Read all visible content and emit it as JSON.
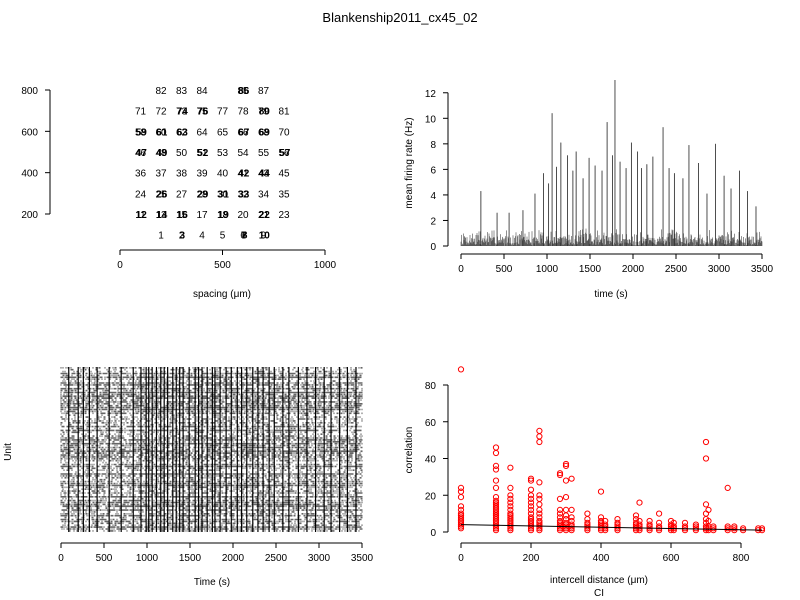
{
  "figure": {
    "title": "Blankenship2011_cx45_02"
  },
  "chart_data": [
    {
      "id": "layout",
      "type": "scatter",
      "subtype": "text-labels",
      "title": "",
      "xlabel": "spacing (μm)",
      "ylabel": "",
      "xlim": [
        0,
        1000
      ],
      "ylim": [
        100,
        850
      ],
      "xticks": [
        "0",
        "500",
        "1000"
      ],
      "yticks": [
        "200",
        "400",
        "600",
        "800"
      ],
      "xtick_values": [
        0,
        500,
        1000
      ],
      "ytick_values": [
        200,
        400,
        600,
        800
      ],
      "points": [
        {
          "label": "1",
          "x": 200,
          "y": 100
        },
        {
          "label": "2",
          "x": 300,
          "y": 100
        },
        {
          "label": "3",
          "x": 300,
          "y": 100
        },
        {
          "label": "4",
          "x": 400,
          "y": 100
        },
        {
          "label": "5",
          "x": 500,
          "y": 100
        },
        {
          "label": "6",
          "x": 600,
          "y": 100
        },
        {
          "label": "7",
          "x": 600,
          "y": 100
        },
        {
          "label": "8",
          "x": 600,
          "y": 100
        },
        {
          "label": "9",
          "x": 700,
          "y": 100
        },
        {
          "label": "10",
          "x": 700,
          "y": 100
        },
        {
          "label": "11",
          "x": 100,
          "y": 200
        },
        {
          "label": "12",
          "x": 100,
          "y": 200
        },
        {
          "label": "13",
          "x": 200,
          "y": 200
        },
        {
          "label": "14",
          "x": 200,
          "y": 200
        },
        {
          "label": "15",
          "x": 300,
          "y": 200
        },
        {
          "label": "16",
          "x": 300,
          "y": 200
        },
        {
          "label": "17",
          "x": 400,
          "y": 200
        },
        {
          "label": "18",
          "x": 500,
          "y": 200
        },
        {
          "label": "19",
          "x": 500,
          "y": 200
        },
        {
          "label": "20",
          "x": 600,
          "y": 200
        },
        {
          "label": "21",
          "x": 700,
          "y": 200
        },
        {
          "label": "22",
          "x": 700,
          "y": 200
        },
        {
          "label": "23",
          "x": 800,
          "y": 200
        },
        {
          "label": "24",
          "x": 100,
          "y": 300
        },
        {
          "label": "25",
          "x": 200,
          "y": 300
        },
        {
          "label": "26",
          "x": 200,
          "y": 300
        },
        {
          "label": "27",
          "x": 300,
          "y": 300
        },
        {
          "label": "28",
          "x": 400,
          "y": 300
        },
        {
          "label": "29",
          "x": 400,
          "y": 300
        },
        {
          "label": "30",
          "x": 500,
          "y": 300
        },
        {
          "label": "31",
          "x": 500,
          "y": 300
        },
        {
          "label": "32",
          "x": 600,
          "y": 300
        },
        {
          "label": "33",
          "x": 600,
          "y": 300
        },
        {
          "label": "34",
          "x": 700,
          "y": 300
        },
        {
          "label": "35",
          "x": 800,
          "y": 300
        },
        {
          "label": "36",
          "x": 100,
          "y": 400
        },
        {
          "label": "37",
          "x": 200,
          "y": 400
        },
        {
          "label": "38",
          "x": 300,
          "y": 400
        },
        {
          "label": "39",
          "x": 400,
          "y": 400
        },
        {
          "label": "40",
          "x": 500,
          "y": 400
        },
        {
          "label": "41",
          "x": 600,
          "y": 400
        },
        {
          "label": "42",
          "x": 600,
          "y": 400
        },
        {
          "label": "43",
          "x": 700,
          "y": 400
        },
        {
          "label": "44",
          "x": 700,
          "y": 400
        },
        {
          "label": "45",
          "x": 800,
          "y": 400
        },
        {
          "label": "46",
          "x": 100,
          "y": 500
        },
        {
          "label": "47",
          "x": 100,
          "y": 500
        },
        {
          "label": "48",
          "x": 200,
          "y": 500
        },
        {
          "label": "49",
          "x": 200,
          "y": 500
        },
        {
          "label": "50",
          "x": 300,
          "y": 500
        },
        {
          "label": "51",
          "x": 400,
          "y": 500
        },
        {
          "label": "52",
          "x": 400,
          "y": 500
        },
        {
          "label": "53",
          "x": 500,
          "y": 500
        },
        {
          "label": "54",
          "x": 600,
          "y": 500
        },
        {
          "label": "55",
          "x": 700,
          "y": 500
        },
        {
          "label": "56",
          "x": 800,
          "y": 500
        },
        {
          "label": "57",
          "x": 800,
          "y": 500
        },
        {
          "label": "58",
          "x": 100,
          "y": 600
        },
        {
          "label": "59",
          "x": 100,
          "y": 600
        },
        {
          "label": "60",
          "x": 200,
          "y": 600
        },
        {
          "label": "61",
          "x": 200,
          "y": 600
        },
        {
          "label": "62",
          "x": 300,
          "y": 600
        },
        {
          "label": "63",
          "x": 300,
          "y": 600
        },
        {
          "label": "64",
          "x": 400,
          "y": 600
        },
        {
          "label": "65",
          "x": 500,
          "y": 600
        },
        {
          "label": "66",
          "x": 600,
          "y": 600
        },
        {
          "label": "67",
          "x": 600,
          "y": 600
        },
        {
          "label": "68",
          "x": 700,
          "y": 600
        },
        {
          "label": "69",
          "x": 700,
          "y": 600
        },
        {
          "label": "70",
          "x": 800,
          "y": 600
        },
        {
          "label": "71",
          "x": 100,
          "y": 700
        },
        {
          "label": "72",
          "x": 200,
          "y": 700
        },
        {
          "label": "73",
          "x": 300,
          "y": 700
        },
        {
          "label": "74",
          "x": 300,
          "y": 700
        },
        {
          "label": "75",
          "x": 400,
          "y": 700
        },
        {
          "label": "76",
          "x": 400,
          "y": 700
        },
        {
          "label": "77",
          "x": 500,
          "y": 700
        },
        {
          "label": "78",
          "x": 600,
          "y": 700
        },
        {
          "label": "79",
          "x": 700,
          "y": 700
        },
        {
          "label": "80",
          "x": 700,
          "y": 700
        },
        {
          "label": "81",
          "x": 800,
          "y": 700
        },
        {
          "label": "82",
          "x": 200,
          "y": 800
        },
        {
          "label": "83",
          "x": 300,
          "y": 800
        },
        {
          "label": "84",
          "x": 400,
          "y": 800
        },
        {
          "label": "85",
          "x": 600,
          "y": 800
        },
        {
          "label": "86",
          "x": 600,
          "y": 800
        },
        {
          "label": "87",
          "x": 700,
          "y": 800
        }
      ]
    },
    {
      "id": "rate",
      "type": "line",
      "title": "",
      "xlabel": "time (s)",
      "ylabel": "mean firing rate (Hz)",
      "xlim": [
        0,
        3500
      ],
      "ylim": [
        0,
        13
      ],
      "xticks": [
        "0",
        "500",
        "1000",
        "1500",
        "2000",
        "2500",
        "3000",
        "3500"
      ],
      "yticks": [
        "0",
        "2",
        "4",
        "6",
        "8",
        "10",
        "12"
      ],
      "xtick_values": [
        0,
        500,
        1000,
        1500,
        2000,
        2500,
        3000,
        3500
      ],
      "ytick_values": [
        0,
        2,
        4,
        6,
        8,
        10,
        12
      ],
      "baseline_band": [
        0,
        1.5
      ],
      "peaks": [
        {
          "x": 230,
          "y": 4.3
        },
        {
          "x": 420,
          "y": 2.6
        },
        {
          "x": 560,
          "y": 2.6
        },
        {
          "x": 720,
          "y": 2.8
        },
        {
          "x": 860,
          "y": 4.1
        },
        {
          "x": 960,
          "y": 5.7
        },
        {
          "x": 1020,
          "y": 4.9
        },
        {
          "x": 1060,
          "y": 10.4
        },
        {
          "x": 1110,
          "y": 6.2
        },
        {
          "x": 1160,
          "y": 8.1
        },
        {
          "x": 1240,
          "y": 7.1
        },
        {
          "x": 1300,
          "y": 5.9
        },
        {
          "x": 1340,
          "y": 7.4
        },
        {
          "x": 1420,
          "y": 5.3
        },
        {
          "x": 1490,
          "y": 6.9
        },
        {
          "x": 1560,
          "y": 6.3
        },
        {
          "x": 1640,
          "y": 5.9
        },
        {
          "x": 1700,
          "y": 9.7
        },
        {
          "x": 1760,
          "y": 7.1
        },
        {
          "x": 1790,
          "y": 13.0
        },
        {
          "x": 1850,
          "y": 6.6
        },
        {
          "x": 1920,
          "y": 6.1
        },
        {
          "x": 1980,
          "y": 8.1
        },
        {
          "x": 2050,
          "y": 7.4
        },
        {
          "x": 2100,
          "y": 6.1
        },
        {
          "x": 2160,
          "y": 6.4
        },
        {
          "x": 2230,
          "y": 7.0
        },
        {
          "x": 2350,
          "y": 9.3
        },
        {
          "x": 2420,
          "y": 6.1
        },
        {
          "x": 2480,
          "y": 5.7
        },
        {
          "x": 2580,
          "y": 5.3
        },
        {
          "x": 2650,
          "y": 7.9
        },
        {
          "x": 2760,
          "y": 6.5
        },
        {
          "x": 2860,
          "y": 4.1
        },
        {
          "x": 2960,
          "y": 8.0
        },
        {
          "x": 3060,
          "y": 5.5
        },
        {
          "x": 3140,
          "y": 4.5
        },
        {
          "x": 3240,
          "y": 5.9
        },
        {
          "x": 3330,
          "y": 4.3
        },
        {
          "x": 3430,
          "y": 3.1
        }
      ]
    },
    {
      "id": "raster",
      "type": "raster",
      "title": "",
      "xlabel": "Time (s)",
      "ylabel": "Unit",
      "xlim": [
        0,
        3500
      ],
      "xticks": [
        "0",
        "500",
        "1000",
        "1500",
        "2000",
        "2500",
        "3000",
        "3500"
      ],
      "xtick_values": [
        0,
        500,
        1000,
        1500,
        2000,
        2500,
        3000,
        3500
      ],
      "units": 87,
      "event_times": [
        90,
        200,
        260,
        330,
        420,
        560,
        700,
        840,
        930,
        990,
        1020,
        1060,
        1110,
        1160,
        1200,
        1240,
        1300,
        1340,
        1380,
        1420,
        1490,
        1560,
        1600,
        1640,
        1700,
        1760,
        1790,
        1850,
        1920,
        1980,
        2050,
        2100,
        2160,
        2230,
        2290,
        2350,
        2420,
        2480,
        2580,
        2650,
        2760,
        2860,
        2960,
        3060,
        3140,
        3240,
        3330,
        3430
      ]
    },
    {
      "id": "correlation",
      "type": "scatter",
      "title": "",
      "xlabel": "intercell distance (μm)",
      "subxlabel": "CI",
      "ylabel": "correlation",
      "xlim": [
        0,
        870
      ],
      "ylim": [
        0,
        90
      ],
      "xticks": [
        "0",
        "200",
        "400",
        "600",
        "800"
      ],
      "yticks": [
        "0",
        "20",
        "40",
        "60",
        "80"
      ],
      "xtick_values": [
        0,
        200,
        400,
        600,
        800
      ],
      "ytick_values": [
        0,
        20,
        40,
        60,
        80
      ],
      "marker_color": "#ff0000",
      "fit": {
        "x": [
          0,
          860
        ],
        "y": [
          4.0,
          1.0
        ]
      },
      "series": [
        {
          "x": 0,
          "y": [
            88.5,
            24,
            22,
            19,
            14,
            12,
            10,
            9,
            8,
            7,
            6,
            5,
            4,
            3,
            2
          ]
        },
        {
          "x": 100,
          "y": [
            46,
            43,
            36,
            34,
            28,
            24,
            19,
            17,
            16,
            15,
            14,
            13,
            12,
            11,
            10,
            9,
            8,
            7,
            6,
            5,
            4,
            3,
            2,
            1
          ]
        },
        {
          "x": 141,
          "y": [
            35,
            24,
            20,
            18,
            16,
            14,
            12,
            10,
            9,
            8,
            7,
            6,
            5,
            4,
            3,
            2,
            1
          ]
        },
        {
          "x": 200,
          "y": [
            29,
            28,
            23,
            20,
            18,
            16,
            14,
            12,
            10,
            8,
            7,
            6,
            5,
            4,
            3,
            2,
            1
          ]
        },
        {
          "x": 224,
          "y": [
            55,
            52,
            49,
            27,
            20,
            18,
            15,
            12,
            10,
            8,
            6,
            5,
            4,
            3,
            2,
            1
          ]
        },
        {
          "x": 283,
          "y": [
            32,
            31,
            18,
            12,
            10,
            8,
            6,
            5,
            4,
            3,
            2,
            1
          ]
        },
        {
          "x": 300,
          "y": [
            37,
            36,
            28,
            19,
            12,
            9,
            7,
            5,
            4,
            3,
            2,
            1
          ]
        },
        {
          "x": 316,
          "y": [
            29,
            12,
            8,
            6,
            4,
            3,
            2,
            1
          ]
        },
        {
          "x": 361,
          "y": [
            10,
            7,
            5,
            4,
            3,
            2,
            1
          ]
        },
        {
          "x": 400,
          "y": [
            22,
            8,
            6,
            5,
            4,
            3,
            2,
            1
          ]
        },
        {
          "x": 412,
          "y": [
            6,
            4,
            3,
            2,
            1
          ]
        },
        {
          "x": 447,
          "y": [
            7,
            5,
            4,
            3,
            2,
            1
          ]
        },
        {
          "x": 500,
          "y": [
            9,
            7,
            5,
            4,
            3,
            2,
            1
          ]
        },
        {
          "x": 510,
          "y": [
            16,
            6,
            4,
            3,
            2,
            1
          ]
        },
        {
          "x": 539,
          "y": [
            6,
            4,
            3,
            2,
            1
          ]
        },
        {
          "x": 566,
          "y": [
            10,
            5,
            3,
            2,
            1
          ]
        },
        {
          "x": 600,
          "y": [
            6,
            4,
            3,
            2,
            1
          ]
        },
        {
          "x": 608,
          "y": [
            5,
            3,
            2,
            1
          ]
        },
        {
          "x": 640,
          "y": [
            5,
            3,
            2,
            1
          ]
        },
        {
          "x": 671,
          "y": [
            4,
            3,
            2,
            1
          ]
        },
        {
          "x": 700,
          "y": [
            49,
            40,
            15,
            10,
            7,
            5,
            3,
            2,
            1
          ]
        },
        {
          "x": 707,
          "y": [
            12,
            6,
            3,
            2,
            1
          ]
        },
        {
          "x": 721,
          "y": [
            3,
            2,
            1
          ]
        },
        {
          "x": 762,
          "y": [
            24,
            3,
            2,
            1
          ]
        },
        {
          "x": 781,
          "y": [
            3,
            2,
            1
          ]
        },
        {
          "x": 806,
          "y": [
            2,
            1
          ]
        },
        {
          "x": 849,
          "y": [
            2,
            1
          ]
        },
        {
          "x": 860,
          "y": [
            2,
            1
          ]
        }
      ]
    }
  ]
}
